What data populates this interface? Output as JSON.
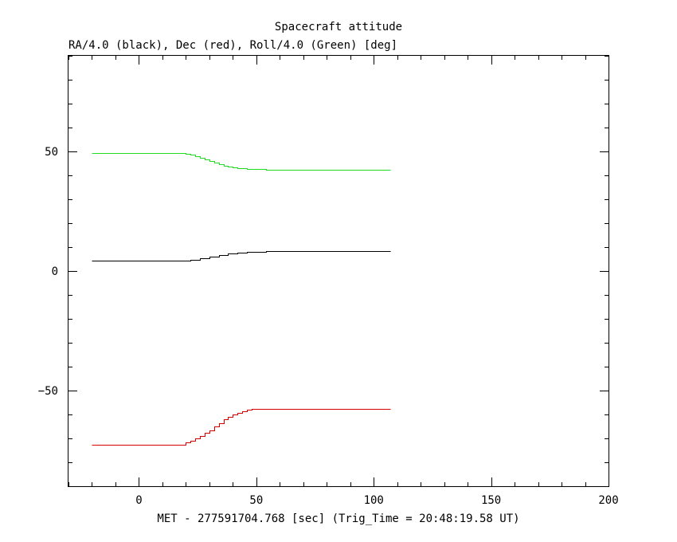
{
  "chart_data": {
    "type": "line",
    "title": "Spacecraft attitude",
    "subtitle": "RA/4.0 (black), Dec (red), Roll/4.0 (Green) [deg]",
    "xlabel": "MET - 277591704.768 [sec] (Trig_Time = 20:48:19.58 UT)",
    "ylabel": "",
    "xlim": [
      -30,
      200
    ],
    "ylim": [
      -90,
      90
    ],
    "x_ticks": [
      0,
      50,
      100,
      150,
      200
    ],
    "x_minor_step": 10,
    "x_tick_labels": [
      "0",
      "50",
      "100",
      "150",
      "200"
    ],
    "y_ticks": [
      -50,
      0,
      50
    ],
    "y_minor_step": 10,
    "y_tick_labels": [
      "−50",
      "0",
      "50"
    ],
    "grid": false,
    "legend": "none",
    "series": [
      {
        "color": "#000000",
        "step": true,
        "x": [
          -20,
          18,
          22,
          26,
          30,
          34,
          38,
          42,
          46,
          50,
          54,
          107
        ],
        "y": [
          4.2,
          4.2,
          4.8,
          5.5,
          6.1,
          6.7,
          7.2,
          7.6,
          7.9,
          8.1,
          8.2,
          8.2
        ]
      },
      {
        "color": "#d40000",
        "step": true,
        "x": [
          -20,
          16,
          20,
          22,
          24,
          26,
          28,
          30,
          32,
          34,
          36,
          38,
          40,
          42,
          44,
          46,
          48,
          50,
          52,
          107
        ],
        "y": [
          -72.5,
          -72.5,
          -71.8,
          -71.0,
          -70.0,
          -69.0,
          -67.8,
          -66.5,
          -65.0,
          -63.5,
          -62.0,
          -61.0,
          -60.0,
          -59.2,
          -58.6,
          -58.1,
          -57.8,
          -57.6,
          -57.5,
          -57.5
        ]
      },
      {
        "color": "#22dd22",
        "step": true,
        "x": [
          -20,
          16,
          20,
          22,
          24,
          26,
          28,
          30,
          32,
          34,
          36,
          38,
          40,
          42,
          44,
          46,
          48,
          50,
          52,
          54,
          56,
          107
        ],
        "y": [
          49.5,
          49.5,
          49.1,
          48.6,
          48.0,
          47.3,
          46.6,
          45.9,
          45.2,
          44.6,
          44.1,
          43.7,
          43.4,
          43.1,
          42.9,
          42.8,
          42.7,
          42.6,
          42.6,
          42.5,
          42.5,
          42.5
        ]
      }
    ]
  }
}
